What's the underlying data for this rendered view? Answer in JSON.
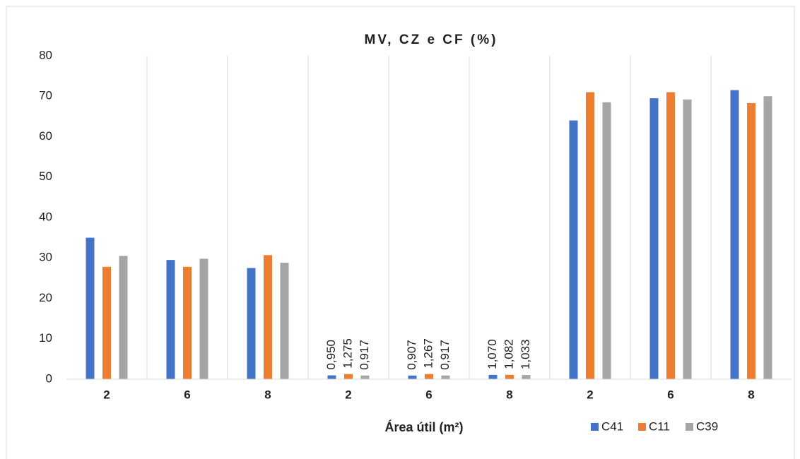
{
  "chart_data": {
    "type": "bar",
    "title": "MV, CZ e CF (%)",
    "x_label": "Área útil (m²)",
    "categories": [
      "2",
      "6",
      "8",
      "2",
      "6",
      "8",
      "2",
      "6",
      "8"
    ],
    "series": [
      {
        "name": "C41",
        "color": "#4472c4",
        "values": [
          35,
          29.5,
          27.5,
          0.95,
          0.907,
          1.07,
          64,
          69.5,
          71.5
        ],
        "value_labels": [
          null,
          null,
          null,
          "0,950",
          "0,907",
          "1,070",
          null,
          null,
          null
        ]
      },
      {
        "name": "C11",
        "color": "#ed7d31",
        "values": [
          27.8,
          27.8,
          30.7,
          1.275,
          1.267,
          1.082,
          71,
          71,
          68.3
        ],
        "value_labels": [
          null,
          null,
          null,
          "1,275",
          "1,267",
          "1,082",
          null,
          null,
          null
        ]
      },
      {
        "name": "C39",
        "color": "#a5a5a5",
        "values": [
          30.5,
          29.8,
          28.8,
          0.917,
          0.917,
          1.033,
          68.5,
          69.2,
          70
        ],
        "value_labels": [
          null,
          null,
          null,
          "0,917",
          "0,917",
          "1,033",
          null,
          null,
          null
        ]
      }
    ],
    "ylim": [
      0,
      80
    ],
    "yticks": [
      0,
      10,
      20,
      30,
      40,
      50,
      60,
      70,
      80
    ],
    "legend": "bottom-right"
  }
}
